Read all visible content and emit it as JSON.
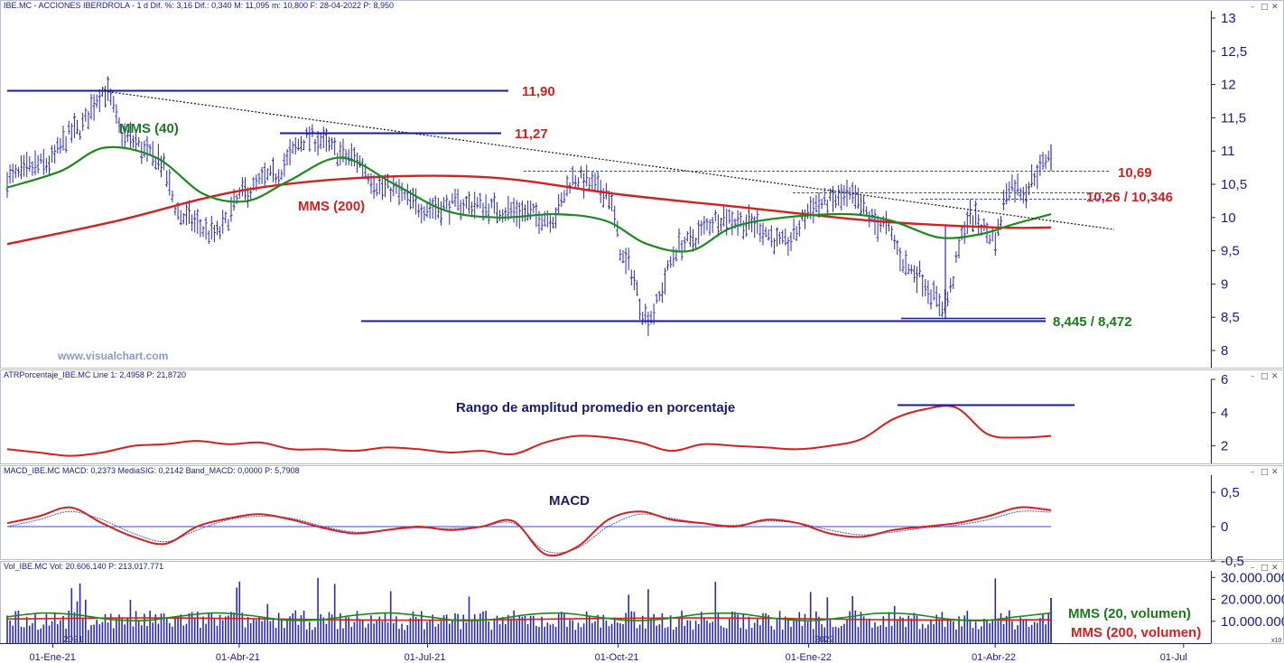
{
  "colors": {
    "price": "#2a2ab8",
    "mms40": "#1c8a1c",
    "mms200": "#d42020",
    "trend": "#222222",
    "axis": "#1a1a8c",
    "atr": "#d42020",
    "macd": "#d42020",
    "signal": "#4a5ad8",
    "volume": "#2a2ab8"
  },
  "price_pane": {
    "header": "IBE.MC - ACCIONES IBERDROLA - 1 d Dif. %: 3,16 Dif.: 0,340 M: 11,095 m: 10,800 F: 28-04-2022 P: 8,950",
    "watermark": "www.visualchart.com",
    "labels": {
      "mms40": "MMS (40)",
      "mms200": "MMS (200)",
      "r1190": "11,90",
      "r1127": "11,27",
      "r1069": "10,69",
      "r1026": "10,26 / 10,346",
      "s8445": "8,445 / 8,472"
    }
  },
  "atr_pane": {
    "header": "ATRPorcentaje_IBE.MC Line 1: 2,4958 P: 21,8720",
    "title": "Rango de amplitud promedio en porcentaje"
  },
  "macd_pane": {
    "header": "MACD_IBE.MC MACD: 0,2373 MediaSIG: 0,2142 Band_MACD: 0,0000 P: 5,7908",
    "title": "MACD"
  },
  "vol_pane": {
    "header": "Vol_IBE.MC Vol: 20.606.140 P: 213.017.771",
    "labels": {
      "mms20v": "MMS (20, volumen)",
      "mms200v": "MMS (200, volumen)"
    },
    "year_2021": "2021",
    "year_2022": "2022",
    "scale_tag": "x10"
  },
  "chart_data": [
    {
      "type": "line",
      "pane": "price",
      "x": [
        "2020-12-10",
        "2020-12-28",
        "2021-01-12",
        "2021-01-26",
        "2021-02-05",
        "2021-02-20",
        "2021-03-05",
        "2021-03-20",
        "2021-04-05",
        "2021-04-15",
        "2021-05-05",
        "2021-05-25",
        "2021-06-10",
        "2021-06-30",
        "2021-07-20",
        "2021-08-10",
        "2021-08-30",
        "2021-09-10",
        "2021-09-25",
        "2021-10-05",
        "2021-10-15",
        "2021-11-01",
        "2021-11-20",
        "2021-12-05",
        "2021-12-20",
        "2022-01-05",
        "2022-01-20",
        "2022-02-05",
        "2022-02-20",
        "2022-03-07",
        "2022-03-20",
        "2022-04-01",
        "2022-04-08",
        "2022-04-15",
        "2022-04-22",
        "2022-04-28"
      ],
      "y": [
        10.6,
        10.8,
        11.3,
        11.9,
        11.2,
        10.9,
        10.0,
        9.75,
        10.4,
        10.6,
        11.2,
        10.9,
        10.45,
        10.15,
        10.2,
        10.1,
        10.0,
        10.6,
        10.4,
        9.3,
        8.5,
        9.6,
        10.0,
        9.9,
        9.6,
        10.2,
        10.3,
        9.9,
        9.2,
        8.7,
        10.0,
        9.7,
        10.5,
        10.4,
        10.7,
        11.0
      ],
      "series": [
        {
          "name": "MMS (40)",
          "x": [
            "2020-12-10",
            "2021-01-05",
            "2021-01-26",
            "2021-02-20",
            "2021-03-15",
            "2021-04-05",
            "2021-04-25",
            "2021-05-20",
            "2021-06-15",
            "2021-07-10",
            "2021-08-05",
            "2021-09-01",
            "2021-09-25",
            "2021-10-15",
            "2021-11-05",
            "2021-11-25",
            "2021-12-20",
            "2022-01-20",
            "2022-02-10",
            "2022-03-05",
            "2022-03-25",
            "2022-04-10",
            "2022-04-28"
          ],
          "values": [
            10.45,
            10.7,
            11.05,
            10.9,
            10.35,
            10.25,
            10.55,
            10.9,
            10.5,
            10.1,
            10.0,
            10.05,
            9.95,
            9.6,
            9.5,
            9.85,
            10.0,
            10.05,
            9.95,
            9.7,
            9.75,
            9.9,
            10.05
          ]
        },
        {
          "name": "MMS (200)",
          "x": [
            "2020-12-10",
            "2021-02-01",
            "2021-04-01",
            "2021-06-01",
            "2021-08-01",
            "2021-10-01",
            "2021-12-01",
            "2022-02-01",
            "2022-04-01",
            "2022-04-28"
          ],
          "values": [
            9.6,
            9.95,
            10.4,
            10.6,
            10.6,
            10.35,
            10.15,
            9.95,
            9.85,
            9.85
          ]
        }
      ],
      "levels": [
        11.9,
        11.27,
        10.69,
        10.26,
        10.346,
        8.445,
        8.472
      ],
      "ylim": [
        8,
        13
      ],
      "yticks": [
        "13",
        "12,5",
        "12",
        "11,5",
        "11",
        "10,5",
        "10",
        "9,5",
        "9",
        "8,5",
        "8"
      ],
      "xticks": [
        "01-Ene-21",
        "01-Abr-21",
        "01-Jul-21",
        "01-Oct-21",
        "01-Ene-22",
        "01-Abr-22",
        "01-Jul"
      ],
      "grid": false
    },
    {
      "type": "line",
      "pane": "atr",
      "series": [
        {
          "name": "ATRPorcentaje",
          "values": [
            1.8,
            1.6,
            1.4,
            1.6,
            2.0,
            2.1,
            2.3,
            2.1,
            2.2,
            1.8,
            1.8,
            1.7,
            1.9,
            1.8,
            1.6,
            1.7,
            1.5,
            2.2,
            2.6,
            2.5,
            2.2,
            1.7,
            2.1,
            2.0,
            1.9,
            1.8,
            2.0,
            2.4,
            3.6,
            4.2,
            4.3,
            2.7,
            2.5,
            2.6
          ]
        }
      ],
      "ylim": [
        1,
        6
      ],
      "yticks": [
        "6",
        "4",
        "2"
      ]
    },
    {
      "type": "line",
      "pane": "macd",
      "series": [
        {
          "name": "MACD",
          "values": [
            0.05,
            0.15,
            0.28,
            0.05,
            -0.15,
            -0.25,
            0.0,
            0.12,
            0.18,
            0.1,
            -0.02,
            -0.1,
            -0.05,
            0.0,
            -0.05,
            0.0,
            0.08,
            -0.4,
            -0.3,
            0.1,
            0.22,
            0.1,
            0.05,
            0.0,
            0.1,
            0.05,
            -0.1,
            -0.15,
            -0.05,
            0.0,
            0.05,
            0.15,
            0.28,
            0.24
          ]
        },
        {
          "name": "MediaSIG",
          "values": [
            0.0,
            0.1,
            0.22,
            0.1,
            -0.1,
            -0.22,
            -0.05,
            0.1,
            0.15,
            0.12,
            0.0,
            -0.08,
            -0.05,
            -0.02,
            -0.03,
            0.0,
            0.05,
            -0.35,
            -0.32,
            0.0,
            0.18,
            0.12,
            0.05,
            0.02,
            0.08,
            0.05,
            -0.05,
            -0.12,
            -0.08,
            -0.02,
            0.02,
            0.1,
            0.22,
            0.21
          ]
        }
      ],
      "ylim": [
        -0.5,
        0.7
      ],
      "yticks": [
        "0,5",
        "0",
        "-0,5"
      ]
    },
    {
      "type": "bar",
      "pane": "volume",
      "series": [
        {
          "name": "Vol",
          "values": [
            20606140
          ]
        },
        {
          "name": "MMS (20, volumen)",
          "values": [
            12000000
          ]
        },
        {
          "name": "MMS (200, volumen)",
          "values": [
            11000000
          ]
        }
      ],
      "ylim": [
        0,
        33000000
      ],
      "yticks": [
        "30.000.000",
        "20.000.000",
        "10.000.000"
      ]
    }
  ]
}
